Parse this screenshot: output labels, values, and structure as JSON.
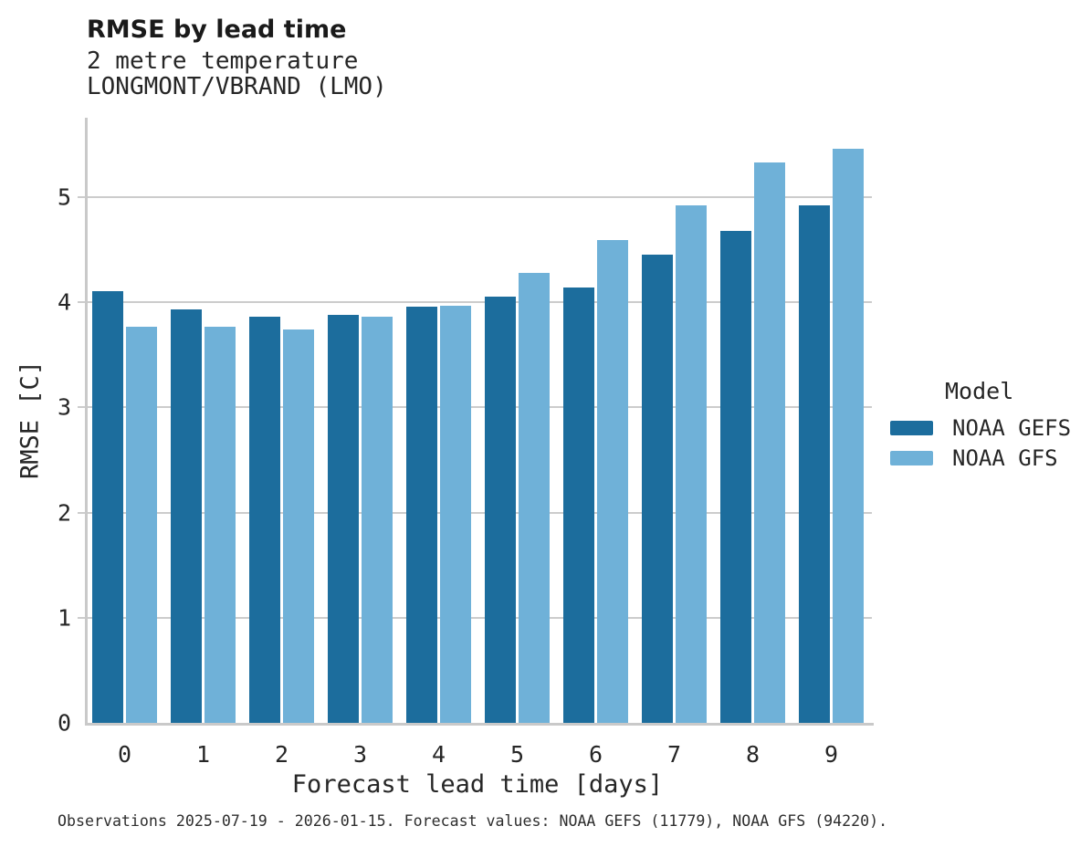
{
  "header": {
    "title": "RMSE by lead time",
    "subtitle1": "2 metre temperature",
    "subtitle2": "LONGMONT/VBRAND (LMO)"
  },
  "legend": {
    "title": "Model",
    "items": [
      {
        "label": "NOAA GEFS",
        "color": "#1c6d9d"
      },
      {
        "label": "NOAA GFS",
        "color": "#6fb1d8"
      }
    ]
  },
  "caption": "Observations 2025-07-19 - 2026-01-15. Forecast values: NOAA GEFS (11779), NOAA GFS (94220).",
  "chart_data": {
    "type": "bar",
    "title": "RMSE by lead time",
    "subtitle": [
      "2 metre temperature",
      "LONGMONT/VBRAND (LMO)"
    ],
    "categories": [
      "0",
      "1",
      "2",
      "3",
      "4",
      "5",
      "6",
      "7",
      "8",
      "9"
    ],
    "series": [
      {
        "name": "NOAA GEFS",
        "color": "#1c6d9d",
        "values": [
          4.11,
          3.93,
          3.86,
          3.88,
          3.96,
          4.05,
          4.14,
          4.45,
          4.68,
          4.92
        ]
      },
      {
        "name": "NOAA GFS",
        "color": "#6fb1d8",
        "values": [
          3.77,
          3.77,
          3.74,
          3.86,
          3.97,
          4.28,
          4.59,
          4.92,
          5.33,
          5.46
        ]
      }
    ],
    "xlabel": "Forecast lead time [days]",
    "ylabel": "RMSE [C]",
    "ylim": [
      0,
      5.76
    ],
    "yticks": [
      0,
      1,
      2,
      3,
      4,
      5
    ],
    "grid": "horizontal-behind-bars",
    "legend_title": "Model",
    "legend_position": "right-outside",
    "grid_color": "#cccccc",
    "axis_color": "#c9c9c9"
  }
}
